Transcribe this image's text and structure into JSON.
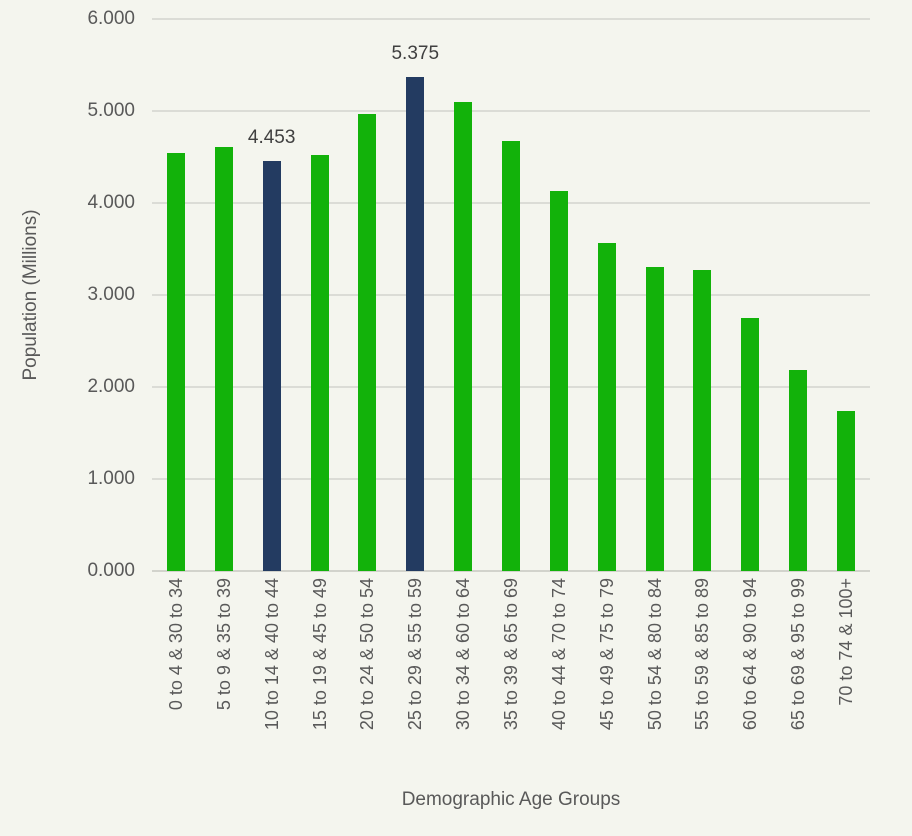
{
  "chart_data": {
    "type": "bar",
    "title": "",
    "xlabel": "Demographic Age Groups",
    "ylabel": "Population (Millions)",
    "ylim": [
      0,
      6
    ],
    "grid": true,
    "legend": false,
    "ytick_labels": [
      "0.000",
      "1.000",
      "2.000",
      "3.000",
      "4.000",
      "5.000",
      "6.000"
    ],
    "categories": [
      "0 to 4 & 30 to 34",
      "5 to 9 & 35 to 39",
      "10 to 14 & 40 to 44",
      "15 to 19 & 45 to 49",
      "20 to 24 & 50 to 54",
      "25 to 29 & 55 to 59",
      "30 to 34 & 60 to 64",
      "35 to 39 & 65 to 69",
      "40 to 44 & 70 to 74",
      "45 to 49 & 75 to 79",
      "50 to 54 & 80 to 84",
      "55 to 59 & 85 to 89",
      "60 to 64 & 90 to 94",
      "65 to 69 & 95 to 99",
      "70 to 74 & 100+"
    ],
    "values": [
      4.54,
      4.61,
      4.453,
      4.52,
      4.97,
      5.375,
      5.1,
      4.67,
      4.13,
      3.57,
      3.3,
      3.27,
      2.75,
      2.18,
      1.74
    ],
    "highlighted_indices": [
      2,
      5
    ],
    "data_labels": [
      {
        "index": 2,
        "text": "4.453"
      },
      {
        "index": 5,
        "text": "5.375"
      }
    ],
    "colors": {
      "bar_default": "#12B20A",
      "bar_highlight": "#233B61",
      "background": "#F4F5EE",
      "gridline": "#DBDCD6",
      "axis_line": "#D2D3CC",
      "tick_text": "#595959",
      "axis_title_text": "#595959",
      "data_label_text": "#404040"
    }
  }
}
